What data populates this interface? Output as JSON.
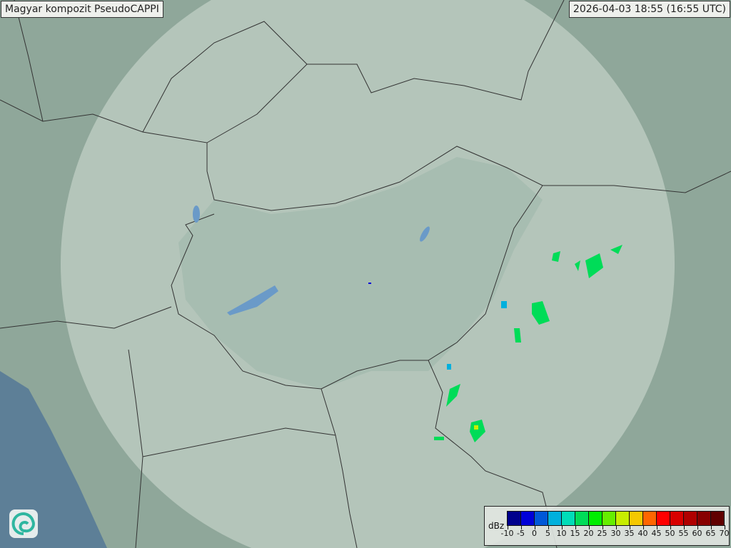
{
  "title": "Magyar kompozit  PseudoCAPPI",
  "timestamp": "2026-04-03 18:55 (16:55 UTC)",
  "legend": {
    "unit": "dBz",
    "ticks": [
      "-10",
      "-5",
      "0",
      "5",
      "10",
      "15",
      "20",
      "25",
      "30",
      "35",
      "40",
      "45",
      "50",
      "55",
      "60",
      "65",
      "70"
    ],
    "colors": [
      "#00008c",
      "#0000d8",
      "#0058d8",
      "#00b0dd",
      "#00dcb8",
      "#00dc58",
      "#00ee00",
      "#66ee00",
      "#c8ee00",
      "#f5c800",
      "#ff6600",
      "#ff0000",
      "#d80000",
      "#b00000",
      "#880000",
      "#600000"
    ]
  },
  "colors": {
    "land": "#8fa79a",
    "coverage": "#c9d6ce",
    "sea": "#5d7f97",
    "border": "#333333",
    "river": "#6a9ac8"
  },
  "logo_icon": "met-service-swirl-logo"
}
